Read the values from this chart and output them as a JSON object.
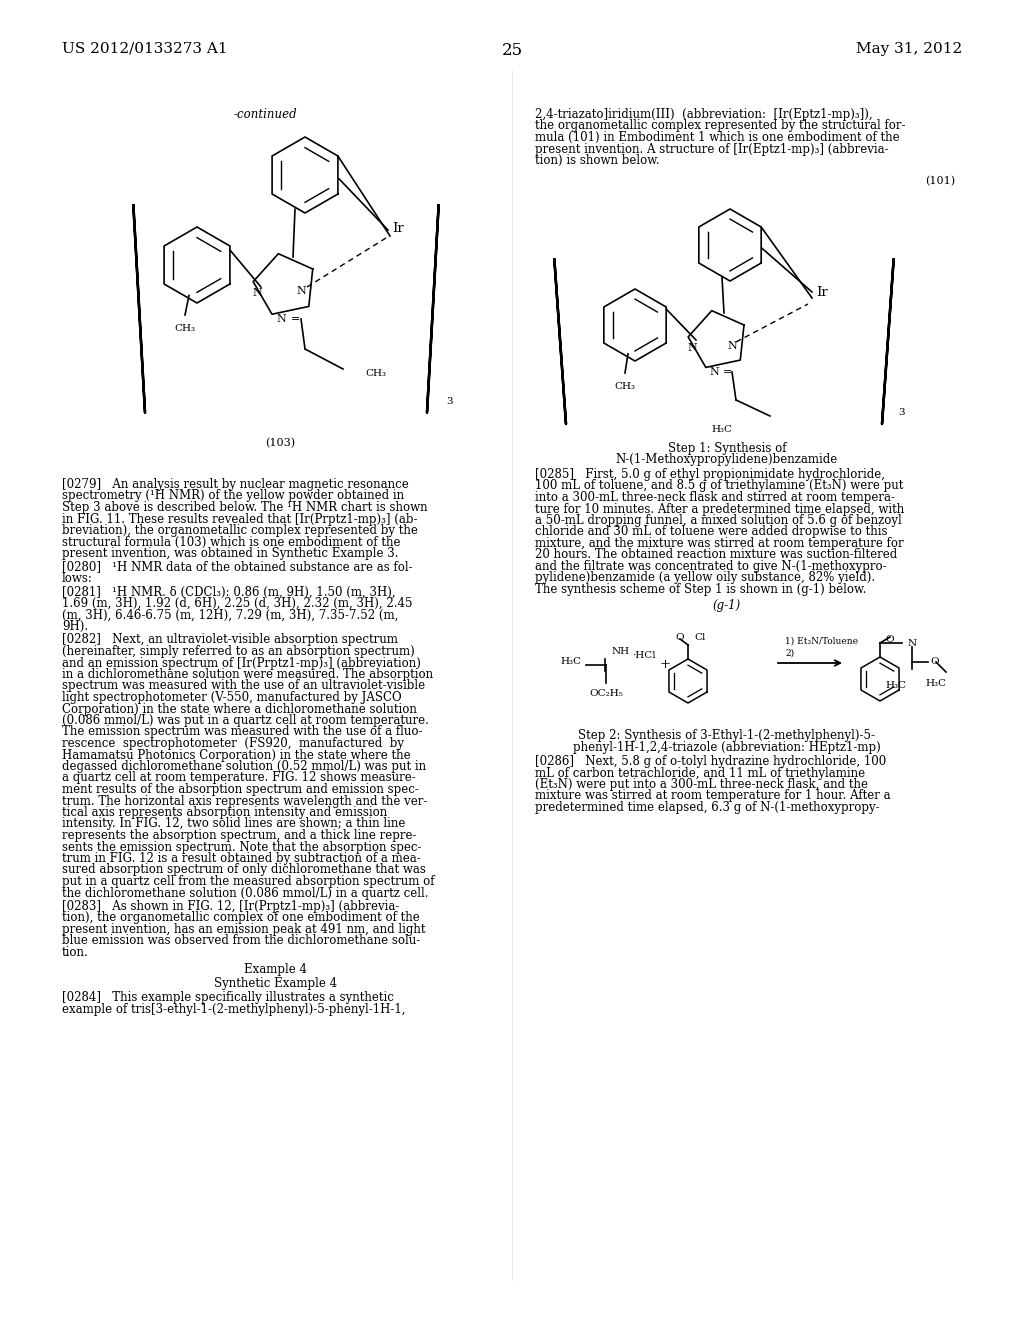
{
  "page_header_left": "US 2012/0133273 A1",
  "page_header_right": "May 31, 2012",
  "page_number": "25",
  "bg": "#ffffff",
  "fg": "#000000",
  "dpi": 100,
  "figw": 10.24,
  "figh": 13.2,
  "struct103_label": "-continued",
  "struct103_caption": "(103)",
  "struct101_caption": "(101)",
  "step1_title1": "Step 1: Synthesis of",
  "step1_title2": "N-(1-Methoxypropylidene)benzamide",
  "scheme_label": "(g-1)",
  "step2_title": "Step 2: Synthesis of 3-Ethyl-1-(2-methylphenyl)-5-\nphenyl-1H-1,2,4-triazole (abbreviation: HEptz1-mp)",
  "right_top_line1": "2,4-triazato]iridium(III)  (abbreviation:  [Ir(Eptz1-mp)₃]),",
  "right_top_line2": "the organometallic complex represented by the structural for-",
  "right_top_line3": "mula (101) in Embodiment 1 which is one embodiment of the",
  "right_top_line4": "present invention. A structure of [Ir(Eptz1-mp)₃] (abbrevia-",
  "right_top_line5": "tion) is shown below.",
  "p0279_lines": [
    "[0279]   An analysis result by nuclear magnetic resonance",
    "spectrometry (¹H NMR) of the yellow powder obtained in",
    "Step 3 above is described below. The ¹H NMR chart is shown",
    "in FIG. 11. These results revealed that [Ir(Prptz1-mp)₃] (ab-",
    "breviation), the organometallic complex represented by the",
    "structural formula (103) which is one embodiment of the",
    "present invention, was obtained in Synthetic Example 3."
  ],
  "p0280_lines": [
    "[0280]   ¹H NMR data of the obtained substance are as fol-",
    "lows:"
  ],
  "p0281_lines": [
    "[0281]   ¹H NMR. δ (CDCl₃): 0.86 (m, 9H), 1.50 (m, 3H),",
    "1.69 (m, 3H), 1.92 (d, 6H), 2.25 (d, 3H), 2.32 (m, 3H), 2.45",
    "(m, 3H), 6.46-6.75 (m, 12H), 7.29 (m, 3H), 7.35-7.52 (m,",
    "9H)."
  ],
  "p0282_lines": [
    "[0282]   Next, an ultraviolet-visible absorption spectrum",
    "(hereinafter, simply referred to as an absorption spectrum)",
    "and an emission spectrum of [Ir(Prptz1-mp)₃] (abbreviation)",
    "in a dichloromethane solution were measured. The absorption",
    "spectrum was measured with the use of an ultraviolet-visible",
    "light spectrophotometer (V-550, manufactured by JASCO",
    "Corporation) in the state where a dichloromethane solution",
    "(0.086 mmol/L) was put in a quartz cell at room temperature.",
    "The emission spectrum was measured with the use of a fluo-",
    "rescence  spectrophotometer  (FS920,  manufactured  by",
    "Hamamatsu Photonics Corporation) in the state where the",
    "degassed dichloromethane solution (0.52 mmol/L) was put in",
    "a quartz cell at room temperature. FIG. 12 shows measure-",
    "ment results of the absorption spectrum and emission spec-",
    "trum. The horizontal axis represents wavelength and the ver-",
    "tical axis represents absorption intensity and emission",
    "intensity. In FIG. 12, two solid lines are shown; a thin line",
    "represents the absorption spectrum, and a thick line repre-",
    "sents the emission spectrum. Note that the absorption spec-",
    "trum in FIG. 12 is a result obtained by subtraction of a mea-",
    "sured absorption spectrum of only dichloromethane that was",
    "put in a quartz cell from the measured absorption spectrum of",
    "the dichloromethane solution (0.086 mmol/L) in a quartz cell."
  ],
  "p0283_lines": [
    "[0283]   As shown in FIG. 12, [Ir(Prptz1-mp)₃] (abbrevia-",
    "tion), the organometallic complex of one embodiment of the",
    "present invention, has an emission peak at 491 nm, and light",
    "blue emission was observed from the dichloromethane solu-",
    "tion."
  ],
  "example4_title": "Example 4",
  "synth4_title": "Synthetic Example 4",
  "p0284_lines": [
    "[0284]   This example specifically illustrates a synthetic",
    "example of tris[3-ethyl-1-(2-methylphenyl)-5-phenyl-1H-1,"
  ],
  "p0285_lines": [
    "[0285]   First, 5.0 g of ethyl propionimidate hydrochloride,",
    "100 mL of toluene, and 8.5 g of triethylamine (Et₃N) were put",
    "into a 300-mL three-neck flask and stirred at room tempera-",
    "ture for 10 minutes. After a predetermined time elapsed, with",
    "a 50-mL dropping funnel, a mixed solution of 5.6 g of benzoyl",
    "chloride and 30 mL of toluene were added dropwise to this",
    "mixture, and the mixture was stirred at room temperature for",
    "20 hours. The obtained reaction mixture was suction-filtered",
    "and the filtrate was concentrated to give N-(1-methoxypro-",
    "pylidene)benzamide (a yellow oily substance, 82% yield).",
    "The synthesis scheme of Step 1 is shown in (g-1) below."
  ],
  "p0286_lines": [
    "[0286]   Next, 5.8 g of o-tolyl hydrazine hydrochloride, 100",
    "mL of carbon tetrachloride, and 11 mL of triethylamine",
    "(Et₃N) were put into a 300-mL three-neck flask, and the",
    "mixture was stirred at room temperature for 1 hour. After a",
    "predetermined time elapsed, 6.3 g of N-(1-methoxypropy-"
  ]
}
